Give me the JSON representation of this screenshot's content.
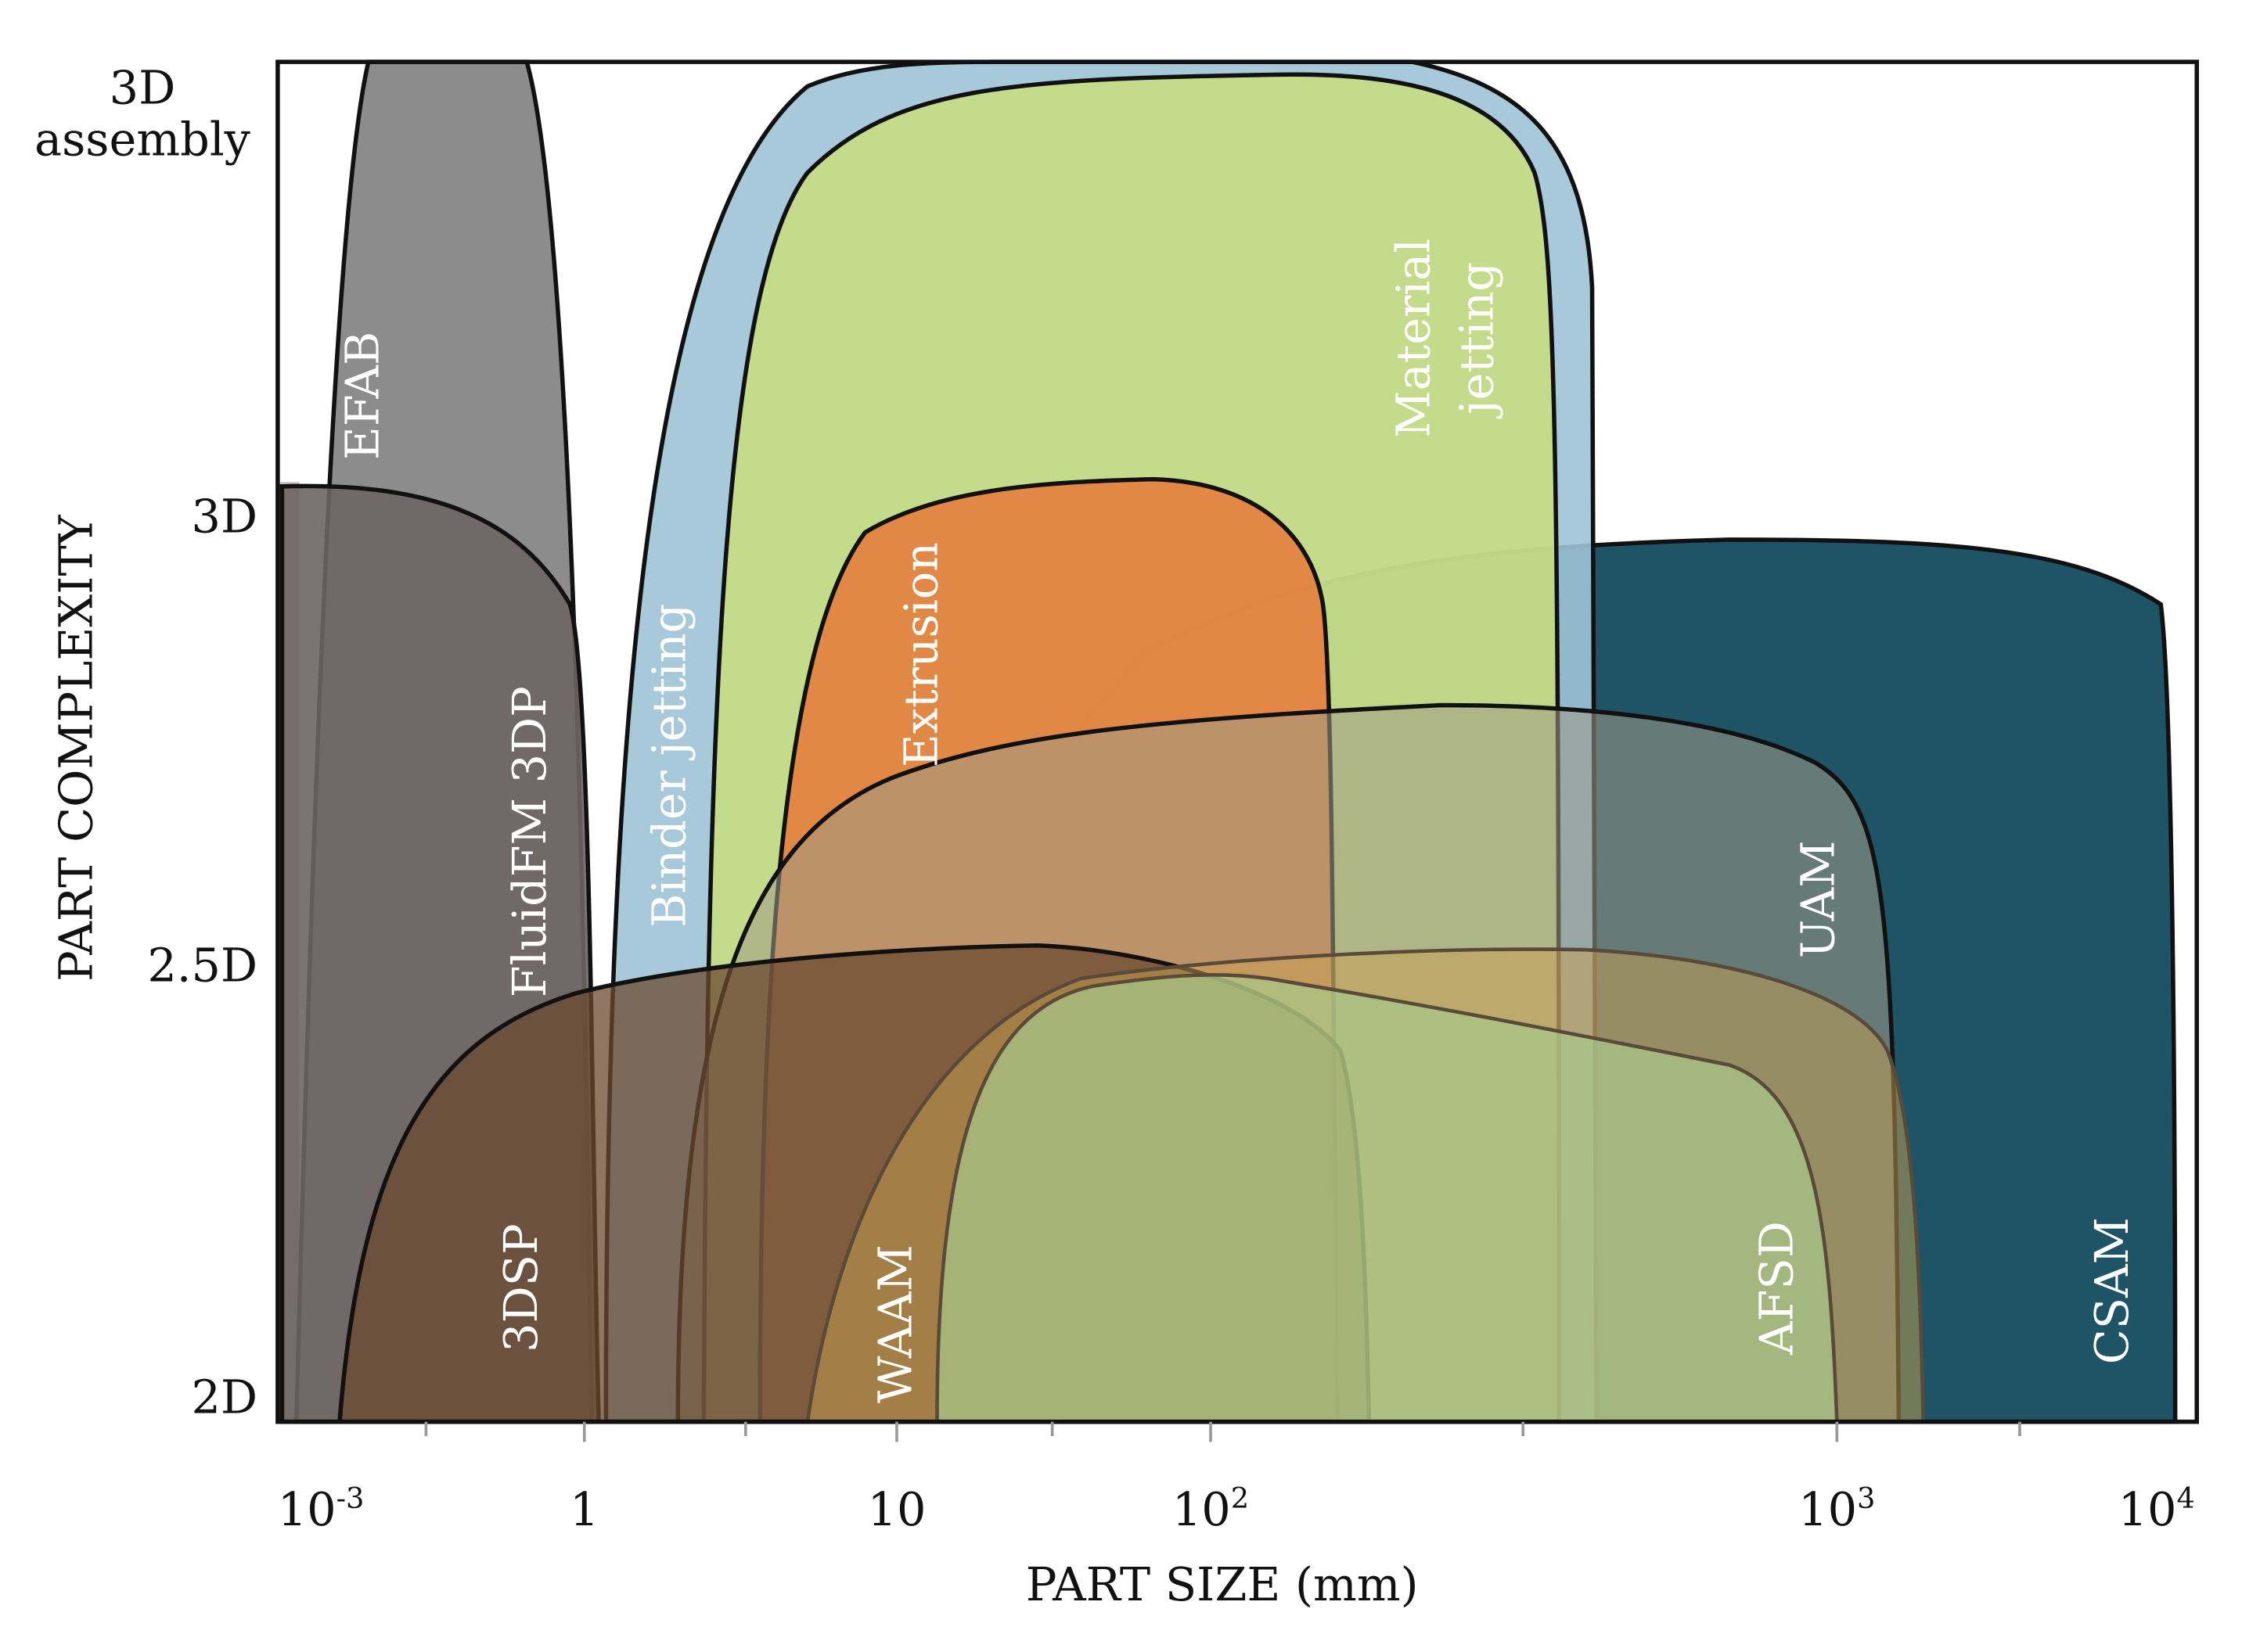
{
  "y_axis": {
    "title": "PART COMPLEXITY",
    "labels": [
      "2D",
      "2.5D",
      "3D"
    ],
    "top_label": [
      "3D",
      "assembly"
    ]
  },
  "x_axis": {
    "title": "PART SIZE (mm)",
    "labels": [
      {
        "base": "10",
        "exp": "-3"
      },
      "1",
      "10",
      {
        "base": "10",
        "exp": "2"
      },
      {
        "base": "10",
        "exp": "3"
      },
      {
        "base": "10",
        "exp": "4"
      }
    ]
  },
  "regions": [
    "EFAB",
    "FluidFM 3DP",
    "Binder jetting",
    "Extrusion",
    [
      "Material",
      "jetting"
    ],
    "UAM",
    "3DSP",
    "WAAM",
    "AFSD",
    "CSAM"
  ]
}
